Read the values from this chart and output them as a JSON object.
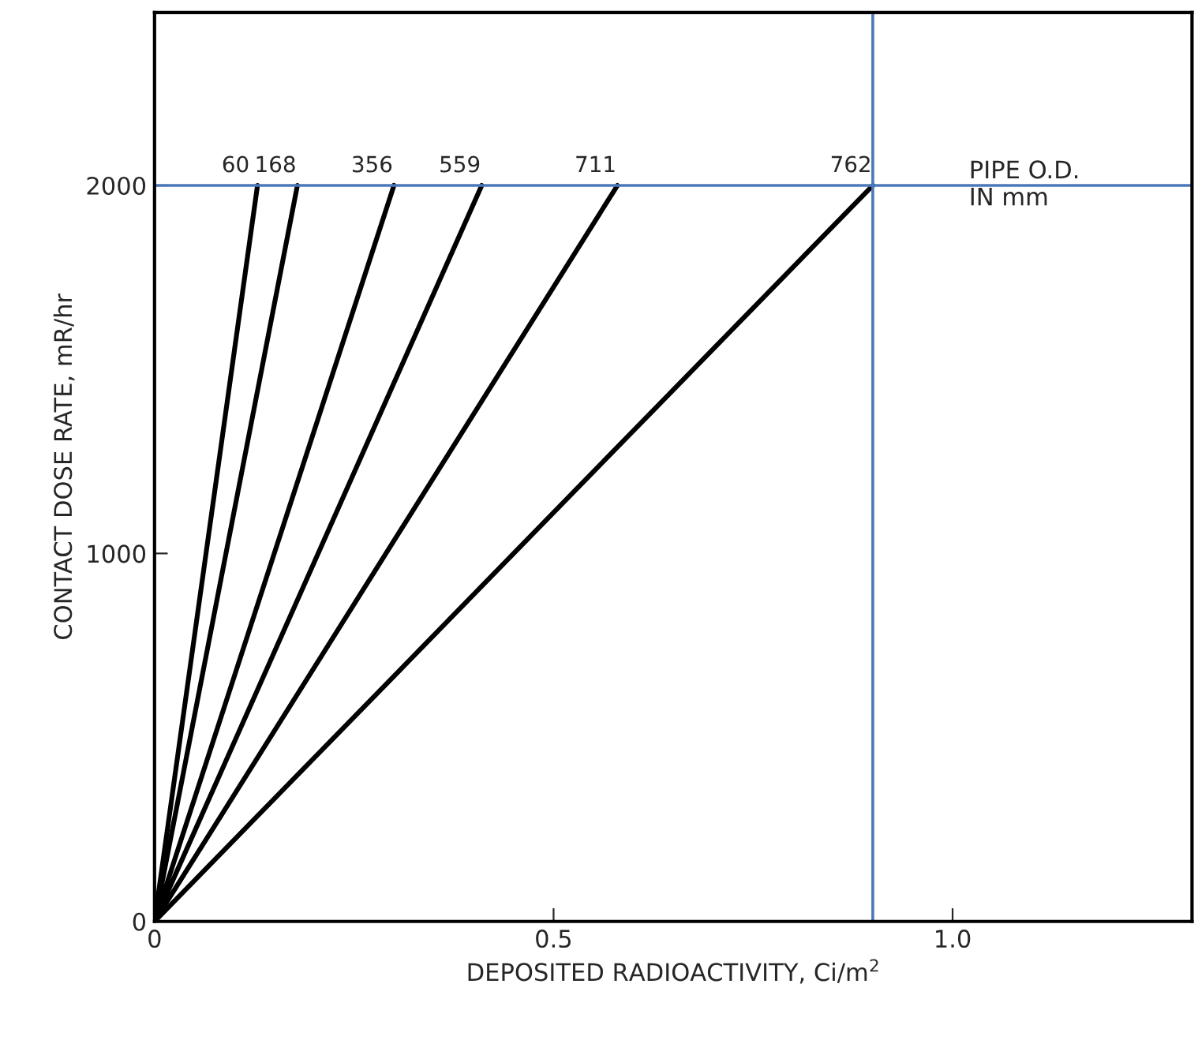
{
  "chart_data": {
    "type": "line",
    "xlabel": "DEPOSITED RADIOACTIVITY, Ci/m$^{2}$",
    "ylabel": "CONTACT DOSE RATE, mR/hr",
    "xlim": [
      0,
      1.3
    ],
    "ylim": [
      0,
      2470
    ],
    "xticks": [
      0,
      0.5,
      {
        "value": 1.0,
        "label": "1.0"
      }
    ],
    "yticks": [
      0,
      1000,
      2000
    ],
    "grid": false,
    "legend": false,
    "marker": "none",
    "line_style": "solid",
    "series": [
      {
        "name": "60",
        "color": "#000000",
        "x": [
          0,
          0.129
        ],
        "values": [
          0,
          2000
        ]
      },
      {
        "name": "168",
        "color": "#000000",
        "x": [
          0,
          0.179
        ],
        "values": [
          0,
          2000
        ]
      },
      {
        "name": "356",
        "color": "#000000",
        "x": [
          0,
          0.3
        ],
        "values": [
          0,
          2000
        ]
      },
      {
        "name": "559",
        "color": "#000000",
        "x": [
          0,
          0.41
        ],
        "values": [
          0,
          2000
        ]
      },
      {
        "name": "711",
        "color": "#000000",
        "x": [
          0,
          0.58
        ],
        "values": [
          0,
          2000
        ]
      },
      {
        "name": "762",
        "color": "#000000",
        "x": [
          0,
          0.9
        ],
        "values": [
          0,
          2000
        ]
      }
    ],
    "ref_lines": [
      {
        "axis": "y",
        "value": 2000,
        "color": "#4a78b8"
      },
      {
        "axis": "x",
        "value": 0.9,
        "color": "#4a78b8"
      }
    ],
    "annotations": [
      "PIPE O.D.\nIN mm"
    ]
  }
}
